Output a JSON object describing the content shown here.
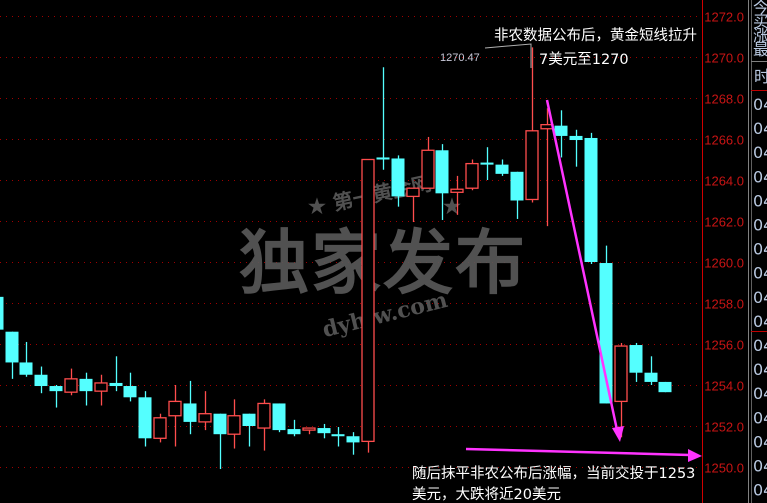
{
  "chart_data": {
    "type": "candlestick",
    "ylim": [
      1250,
      1272.8
    ],
    "yticks": [
      1272,
      1270,
      1268,
      1266,
      1264,
      1262,
      1260,
      1258,
      1256,
      1254,
      1252,
      1250
    ],
    "ytick_labels": [
      "1272.0",
      "1270.0",
      "1268.0",
      "1266.0",
      "1264.0",
      "1262.0",
      "1260.0",
      "1258.0",
      "1256.0",
      "1254.0",
      "1252.0",
      "1250.0"
    ],
    "grid": true,
    "up_color": "#ff4d4d",
    "down_color": "#54ffff",
    "candles_ohlc": [
      [
        1258.3,
        1258.3,
        1256.7,
        1256.7
      ],
      [
        1256.6,
        1256.6,
        1254.3,
        1255.1
      ],
      [
        1255.1,
        1256.1,
        1254.4,
        1254.5
      ],
      [
        1254.5,
        1254.9,
        1253.6,
        1253.95
      ],
      [
        1253.95,
        1254.0,
        1252.9,
        1253.7
      ],
      [
        1253.65,
        1254.8,
        1253.5,
        1254.3
      ],
      [
        1254.3,
        1254.6,
        1253.0,
        1253.7
      ],
      [
        1253.7,
        1254.5,
        1253.0,
        1254.1
      ],
      [
        1254.1,
        1255.4,
        1253.7,
        1253.95
      ],
      [
        1253.95,
        1254.6,
        1253.2,
        1253.4
      ],
      [
        1253.4,
        1253.7,
        1251.0,
        1251.4
      ],
      [
        1251.4,
        1252.6,
        1251.2,
        1252.4
      ],
      [
        1252.5,
        1254.0,
        1251.0,
        1253.2
      ],
      [
        1253.1,
        1254.2,
        1251.6,
        1252.2
      ],
      [
        1252.2,
        1253.7,
        1251.8,
        1252.6
      ],
      [
        1252.6,
        1252.6,
        1249.9,
        1251.6
      ],
      [
        1251.6,
        1253.3,
        1250.9,
        1252.5
      ],
      [
        1252.6,
        1252.6,
        1251.0,
        1252.0
      ],
      [
        1251.9,
        1253.3,
        1250.8,
        1253.1
      ],
      [
        1253.1,
        1253.1,
        1251.7,
        1251.8
      ],
      [
        1251.85,
        1252.3,
        1251.5,
        1251.6
      ],
      [
        1251.8,
        1251.9,
        1251.6,
        1251.9
      ],
      [
        1251.9,
        1252.1,
        1251.4,
        1251.65
      ],
      [
        1251.6,
        1251.95,
        1251.0,
        1251.5
      ],
      [
        1251.5,
        1251.7,
        1250.6,
        1251.2
      ],
      [
        1251.25,
        1265.0,
        1250.7,
        1265.0
      ],
      [
        1265.1,
        1269.5,
        1264.5,
        1265.0
      ],
      [
        1265.05,
        1265.2,
        1262.7,
        1263.2
      ],
      [
        1263.2,
        1263.6,
        1261.95,
        1263.6
      ],
      [
        1263.6,
        1266.1,
        1263.6,
        1265.45
      ],
      [
        1265.45,
        1265.75,
        1262.05,
        1263.35
      ],
      [
        1263.4,
        1264.2,
        1262.3,
        1263.55
      ],
      [
        1263.6,
        1265.0,
        1263.5,
        1264.8
      ],
      [
        1264.85,
        1265.6,
        1264.0,
        1264.75
      ],
      [
        1264.75,
        1265.0,
        1264.2,
        1264.3
      ],
      [
        1264.4,
        1264.4,
        1262.1,
        1263.0
      ],
      [
        1263.05,
        1270.47,
        1262.9,
        1266.4
      ],
      [
        1266.5,
        1267.5,
        1261.75,
        1266.7
      ],
      [
        1266.65,
        1267.4,
        1265.1,
        1266.15
      ],
      [
        1266.15,
        1266.45,
        1264.65,
        1265.95
      ],
      [
        1266.05,
        1266.3,
        1259.9,
        1260.0
      ],
      [
        1259.95,
        1260.8,
        1253.1,
        1253.1
      ],
      [
        1253.2,
        1256.05,
        1251.45,
        1255.9
      ],
      [
        1255.95,
        1256.05,
        1254.15,
        1254.6
      ],
      [
        1254.6,
        1255.4,
        1254.0,
        1254.15
      ],
      [
        1254.15,
        1254.15,
        1253.65,
        1253.65
      ]
    ],
    "annotations": {
      "high_label": "1270.47",
      "top_note_line1": "非农数据公布后，黄金短线拉升",
      "top_note_line2": "7美元至1270",
      "bottom_note_line1": "随后抹平非农公布后涨幅，当前交投于1253",
      "bottom_note_line2": "美元，大跌将近20美元",
      "arrow_color": "#ff33ff"
    }
  },
  "watermark": {
    "site_cn": "第一黄金网",
    "headline": "独家发布",
    "domain": "dyhjw.com"
  },
  "side_panel": {
    "top_rows": [
      "今",
      "买",
      "涨",
      "最"
    ],
    "header": "时",
    "time_rows": [
      "04",
      "04",
      "04",
      "04",
      "04",
      "04",
      "04",
      "04",
      "04",
      "04",
      "04",
      "04",
      "04",
      "04",
      "04",
      "04",
      "04"
    ]
  }
}
